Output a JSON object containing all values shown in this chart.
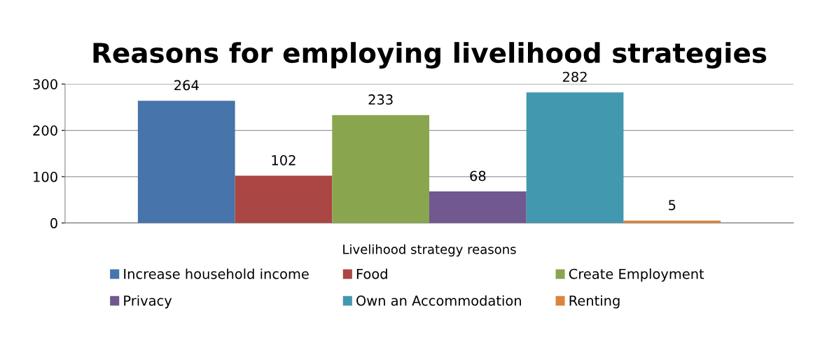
{
  "chart_data": {
    "type": "bar",
    "title": "Reasons for employing livelihood strategies",
    "categories": [
      "Livelihood strategy reasons"
    ],
    "series": [
      {
        "name": "Increase household income",
        "color": "#4674ab",
        "values": [
          264
        ]
      },
      {
        "name": "Food",
        "color": "#aa4643",
        "values": [
          102
        ]
      },
      {
        "name": "Create Employment",
        "color": "#89a54e",
        "values": [
          233
        ]
      },
      {
        "name": "Privacy",
        "color": "#71588f",
        "values": [
          68
        ]
      },
      {
        "name": "Own an Accommodation",
        "color": "#4198af",
        "values": [
          282
        ]
      },
      {
        "name": "Renting",
        "color": "#db843d",
        "values": [
          5
        ]
      }
    ],
    "ylim": [
      0,
      300
    ],
    "yticks": [
      0,
      100,
      200,
      300
    ],
    "grid": "y",
    "data_labels": true,
    "legend": "bottom"
  }
}
